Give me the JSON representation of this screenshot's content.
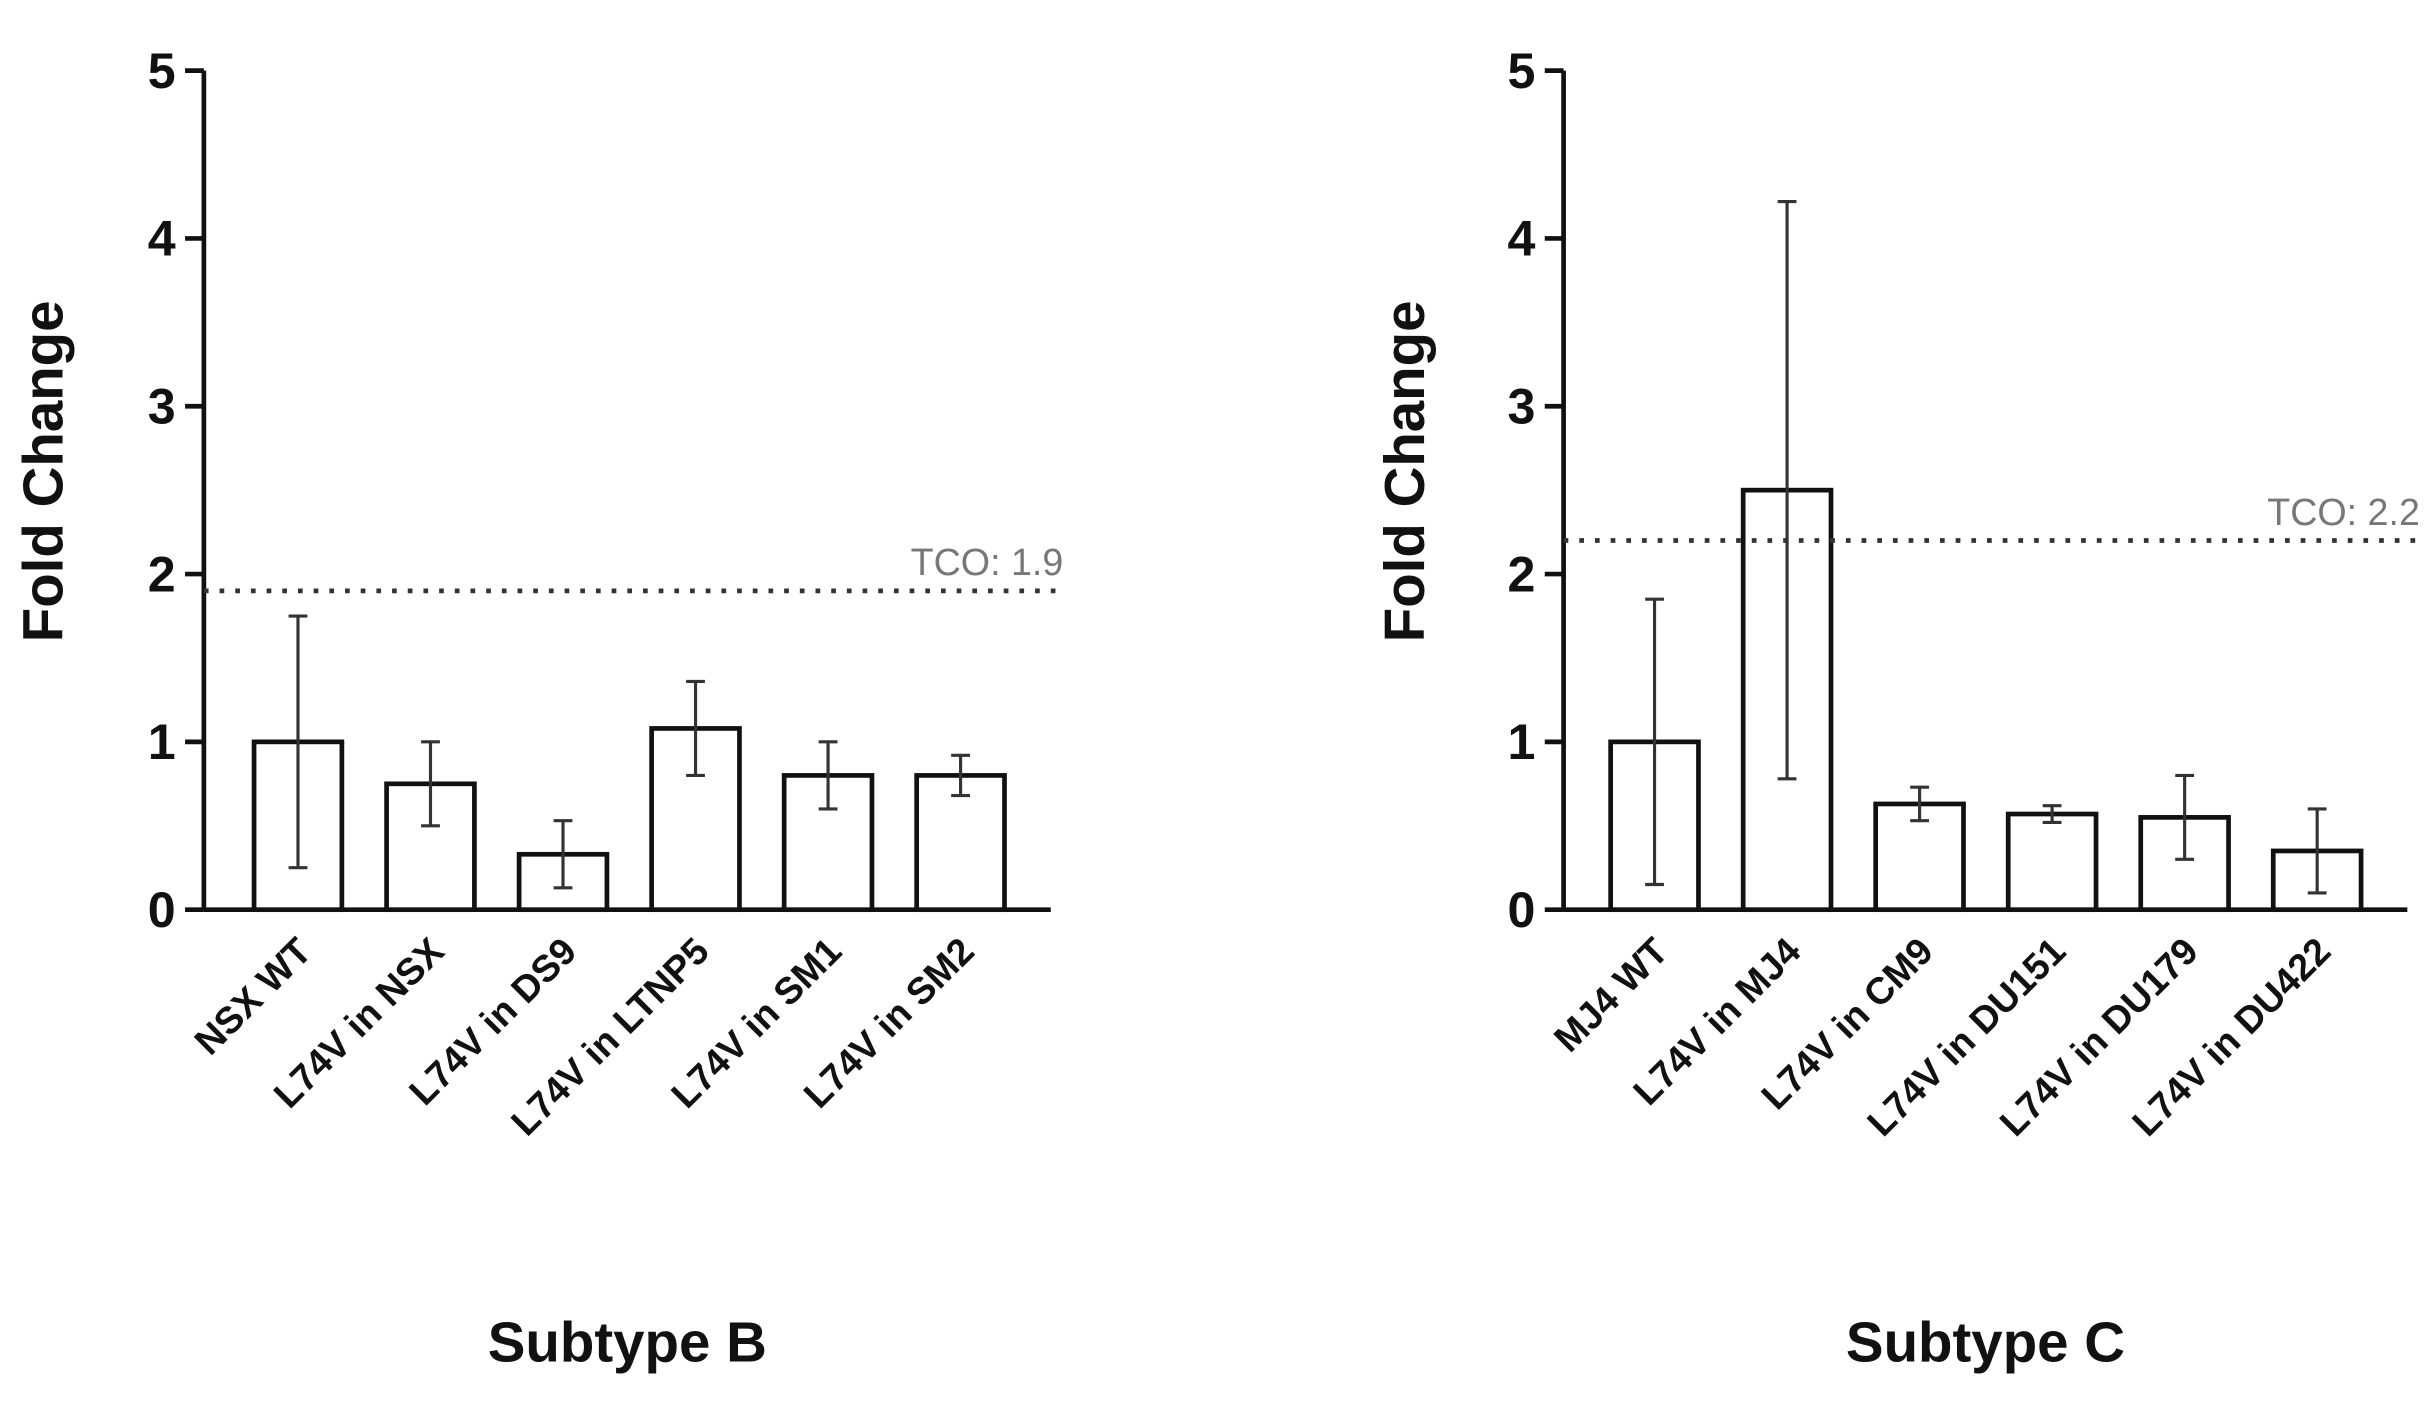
{
  "chart_data": [
    {
      "type": "bar",
      "ylabel": "Fold Change",
      "xlabel": "Subtype B",
      "categories": [
        "NSX WT",
        "L74V in NSX",
        "L74V in DS9",
        "L74V in LTNP5",
        "L74V in SM1",
        "L74V in SM2"
      ],
      "values": [
        1.0,
        0.75,
        0.33,
        1.08,
        0.8,
        0.8
      ],
      "errors": [
        0.75,
        0.25,
        0.2,
        0.28,
        0.2,
        0.12
      ],
      "ylim": [
        0,
        5
      ],
      "yticks": [
        0,
        1,
        2,
        3,
        4,
        5
      ],
      "reference_line": 1.9,
      "reference_label": "TCO: 1.9",
      "color": "#ffffff"
    },
    {
      "type": "bar",
      "ylabel": "Fold Change",
      "xlabel": "Subtype C",
      "categories": [
        "MJ4 WT",
        "L74V in MJ4",
        "L74V in CM9",
        "L74V in DU151",
        "L74V in DU179",
        "L74V in DU422"
      ],
      "values": [
        1.0,
        2.5,
        0.63,
        0.57,
        0.55,
        0.35
      ],
      "errors": [
        0.85,
        1.72,
        0.1,
        0.05,
        0.25,
        0.25
      ],
      "ylim": [
        0,
        5
      ],
      "yticks": [
        0,
        1,
        2,
        3,
        4,
        5
      ],
      "reference_line": 2.2,
      "reference_label": "TCO: 2.2",
      "color": "#ffffff"
    }
  ]
}
